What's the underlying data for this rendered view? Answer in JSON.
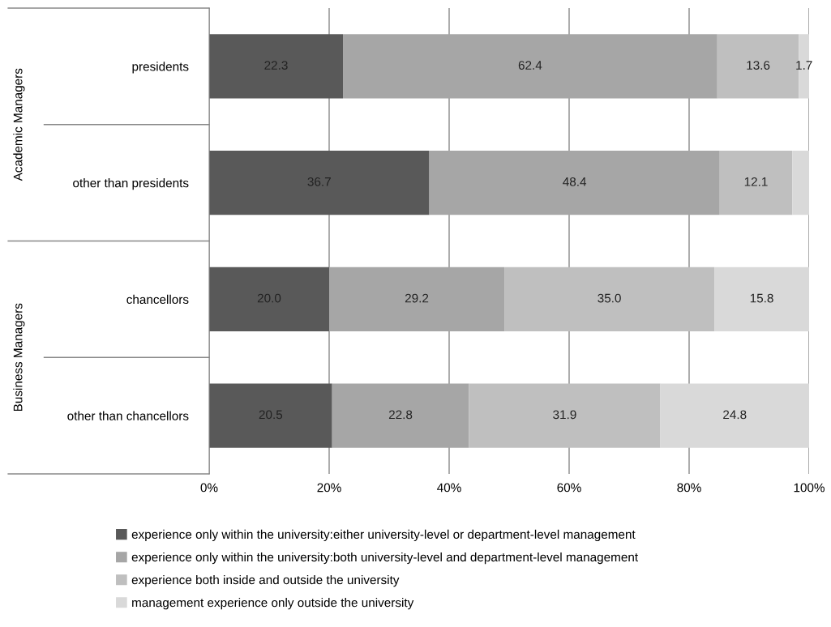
{
  "chart_data": {
    "type": "bar",
    "orientation": "horizontal",
    "stacked": true,
    "categories": [
      "presidents",
      "other than presidents",
      "chancellors",
      "other than chancellors"
    ],
    "series": [
      {
        "name": "experience only within the university:either university-level or department-level management",
        "color": "#595959",
        "values": [
          22.3,
          36.7,
          20.0,
          20.5
        ],
        "value_labels": [
          "22.3",
          "36.7",
          "20.0",
          "20.5"
        ]
      },
      {
        "name": "experience only within the university:both university-level and department-level management",
        "color": "#a6a6a6",
        "values": [
          62.4,
          48.4,
          29.2,
          22.8
        ],
        "value_labels": [
          "62.4",
          "48.4",
          "29.2",
          "22.8"
        ]
      },
      {
        "name": "experience both inside and outside the university",
        "color": "#bfbfbf",
        "values": [
          13.6,
          12.1,
          35.0,
          31.9
        ],
        "value_labels": [
          "13.6",
          "12.1",
          "35.0",
          "31.9"
        ]
      },
      {
        "name": "management experience only outside the university",
        "color": "#d9d9d9",
        "values": [
          1.7,
          2.8,
          15.8,
          24.8
        ],
        "value_labels": [
          "1.7",
          null,
          "15.8",
          "24.8"
        ]
      }
    ],
    "xlim": [
      0,
      100
    ],
    "xticks": [
      {
        "value": 0,
        "label": "0%"
      },
      {
        "value": 20,
        "label": "20%"
      },
      {
        "value": 40,
        "label": "40%"
      },
      {
        "value": 60,
        "label": "60%"
      },
      {
        "value": 80,
        "label": "80%"
      },
      {
        "value": 100,
        "label": "100%"
      }
    ],
    "annotations": [
      "Academic Managers",
      "Business Managers"
    ],
    "grid": "x",
    "legend": "bottom"
  }
}
